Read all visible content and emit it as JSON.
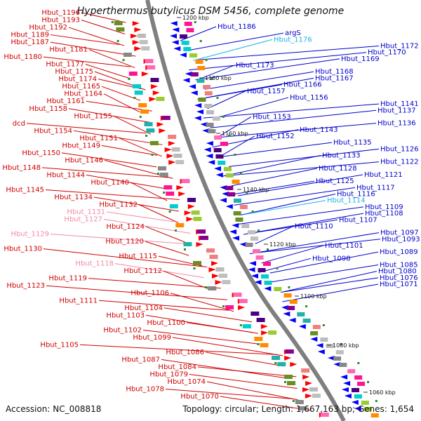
{
  "title": "Hyperthermus butylicus DSM 5456, complete genome",
  "footer": {
    "accession": "Accession: NC_008818",
    "summary": "Topology: circular; Length: 1,667,163 bp; Genes: 1,654"
  },
  "kbp_ticks": [
    {
      "label": "1200 kbp"
    },
    {
      "label": "1180 kbp"
    },
    {
      "label": "1160 kbp"
    },
    {
      "label": "1140 kbp"
    },
    {
      "label": "1120 kbp"
    },
    {
      "label": "1100 kbp"
    },
    {
      "label": "1080 kbp"
    },
    {
      "label": "1060 kbp"
    }
  ],
  "left_labels": [
    {
      "text": "Hbut_1196",
      "style": "red"
    },
    {
      "text": "Hbut_1193",
      "style": "red"
    },
    {
      "text": "Hbut_1192",
      "style": "red"
    },
    {
      "text": "Hbut_1189",
      "style": "red"
    },
    {
      "text": "Hbut_1187",
      "style": "red"
    },
    {
      "text": "Hbut_1181",
      "style": "red"
    },
    {
      "text": "Hbut_1180",
      "style": "red"
    },
    {
      "text": "Hbut_1177",
      "style": "red"
    },
    {
      "text": "Hbut_1175",
      "style": "red"
    },
    {
      "text": "Hbut_1174",
      "style": "red"
    },
    {
      "text": "Hbut_1165",
      "style": "red"
    },
    {
      "text": "Hbut_1164",
      "style": "red"
    },
    {
      "text": "Hbut_1161",
      "style": "red"
    },
    {
      "text": "Hbut_1158",
      "style": "red"
    },
    {
      "text": "Hbut_1155",
      "style": "red"
    },
    {
      "text": "dcd",
      "style": "red"
    },
    {
      "text": "Hbut_1154",
      "style": "red"
    },
    {
      "text": "Hbut_1151",
      "style": "red"
    },
    {
      "text": "Hbut_1149",
      "style": "red"
    },
    {
      "text": "Hbut_1150",
      "style": "red"
    },
    {
      "text": "Hbut_1146",
      "style": "red"
    },
    {
      "text": "Hbut_1148",
      "style": "red"
    },
    {
      "text": "Hbut_1144",
      "style": "red"
    },
    {
      "text": "Hbut_1140",
      "style": "red"
    },
    {
      "text": "Hbut_1145",
      "style": "red"
    },
    {
      "text": "Hbut_1134",
      "style": "red"
    },
    {
      "text": "Hbut_1132",
      "style": "red"
    },
    {
      "text": "Hbut_1131",
      "style": "pink"
    },
    {
      "text": "Hbut_1127",
      "style": "pink"
    },
    {
      "text": "Hbut_1124",
      "style": "red"
    },
    {
      "text": "Hbut_1129",
      "style": "pink"
    },
    {
      "text": "Hbut_1120",
      "style": "red"
    },
    {
      "text": "Hbut_1130",
      "style": "red"
    },
    {
      "text": "Hbut_1115",
      "style": "red"
    },
    {
      "text": "Hbut_1118",
      "style": "pink"
    },
    {
      "text": "Hbut_1112",
      "style": "red"
    },
    {
      "text": "Hbut_1119",
      "style": "red"
    },
    {
      "text": "Hbut_1123",
      "style": "red"
    },
    {
      "text": "Hbut_1106",
      "style": "red"
    },
    {
      "text": "Hbut_1111",
      "style": "red"
    },
    {
      "text": "Hbut_1104",
      "style": "red"
    },
    {
      "text": "Hbut_1103",
      "style": "red"
    },
    {
      "text": "Hbut_1100",
      "style": "red"
    },
    {
      "text": "Hbut_1102",
      "style": "red"
    },
    {
      "text": "Hbut_1099",
      "style": "red"
    },
    {
      "text": "Hbut_1105",
      "style": "red"
    },
    {
      "text": "Hbut_1086",
      "style": "red"
    },
    {
      "text": "Hbut_1087",
      "style": "red"
    },
    {
      "text": "Hbut_1084",
      "style": "red"
    },
    {
      "text": "Hbut_1079",
      "style": "red"
    },
    {
      "text": "Hbut_1074",
      "style": "red"
    },
    {
      "text": "Hbut_1078",
      "style": "red"
    },
    {
      "text": "Hbut_1070",
      "style": "red"
    }
  ],
  "right_labels": [
    {
      "text": "Hbut_1186",
      "style": "blue"
    },
    {
      "text": "argS",
      "style": "blue"
    },
    {
      "text": "Hbut_1176",
      "style": "cyan"
    },
    {
      "text": "Hbut_1172",
      "style": "blue"
    },
    {
      "text": "Hbut_1170",
      "style": "blue"
    },
    {
      "text": "Hbut_1169",
      "style": "blue"
    },
    {
      "text": "Hbut_1173",
      "style": "blue"
    },
    {
      "text": "Hbut_1168",
      "style": "blue"
    },
    {
      "text": "Hbut_1167",
      "style": "blue"
    },
    {
      "text": "Hbut_1166",
      "style": "blue"
    },
    {
      "text": "Hbut_1157",
      "style": "blue"
    },
    {
      "text": "Hbut_1156",
      "style": "blue"
    },
    {
      "text": "Hbut_1141",
      "style": "blue"
    },
    {
      "text": "Hbut_1137",
      "style": "blue"
    },
    {
      "text": "Hbut_1153",
      "style": "blue"
    },
    {
      "text": "Hbut_1136",
      "style": "blue"
    },
    {
      "text": "Hbut_1143",
      "style": "blue"
    },
    {
      "text": "Hbut_1152",
      "style": "blue"
    },
    {
      "text": "Hbut_1135",
      "style": "blue"
    },
    {
      "text": "Hbut_1126",
      "style": "blue"
    },
    {
      "text": "Hbut_1133",
      "style": "blue"
    },
    {
      "text": "Hbut_1122",
      "style": "blue"
    },
    {
      "text": "Hbut_1128",
      "style": "blue"
    },
    {
      "text": "Hbut_1121",
      "style": "blue"
    },
    {
      "text": "Hbut_1125",
      "style": "blue"
    },
    {
      "text": "Hbut_1117",
      "style": "blue"
    },
    {
      "text": "Hbut_1116",
      "style": "blue"
    },
    {
      "text": "Hbut_1114",
      "style": "cyan"
    },
    {
      "text": "Hbut_1109",
      "style": "blue"
    },
    {
      "text": "Hbut_1108",
      "style": "blue"
    },
    {
      "text": "Hbut_1107",
      "style": "blue"
    },
    {
      "text": "Hbut_1110",
      "style": "blue"
    },
    {
      "text": "Hbut_1097",
      "style": "blue"
    },
    {
      "text": "Hbut_1093",
      "style": "blue"
    },
    {
      "text": "Hbut_1101",
      "style": "blue"
    },
    {
      "text": "Hbut_1089",
      "style": "blue"
    },
    {
      "text": "Hbut_1098",
      "style": "blue"
    },
    {
      "text": "Hbut_1085",
      "style": "blue"
    },
    {
      "text": "Hbut_1080",
      "style": "blue"
    },
    {
      "text": "Hbut_1076",
      "style": "blue"
    },
    {
      "text": "Hbut_1071",
      "style": "blue"
    }
  ],
  "colors": {
    "forward_gene": "#ff0000",
    "reverse_gene": "#0000ff",
    "backbone": "#808080",
    "tick_green": "#2e8b2e",
    "label_red": "#d00000",
    "label_pink": "#f08aa6",
    "label_blue": "#0000cc",
    "label_cyan": "#1ab3e6"
  }
}
